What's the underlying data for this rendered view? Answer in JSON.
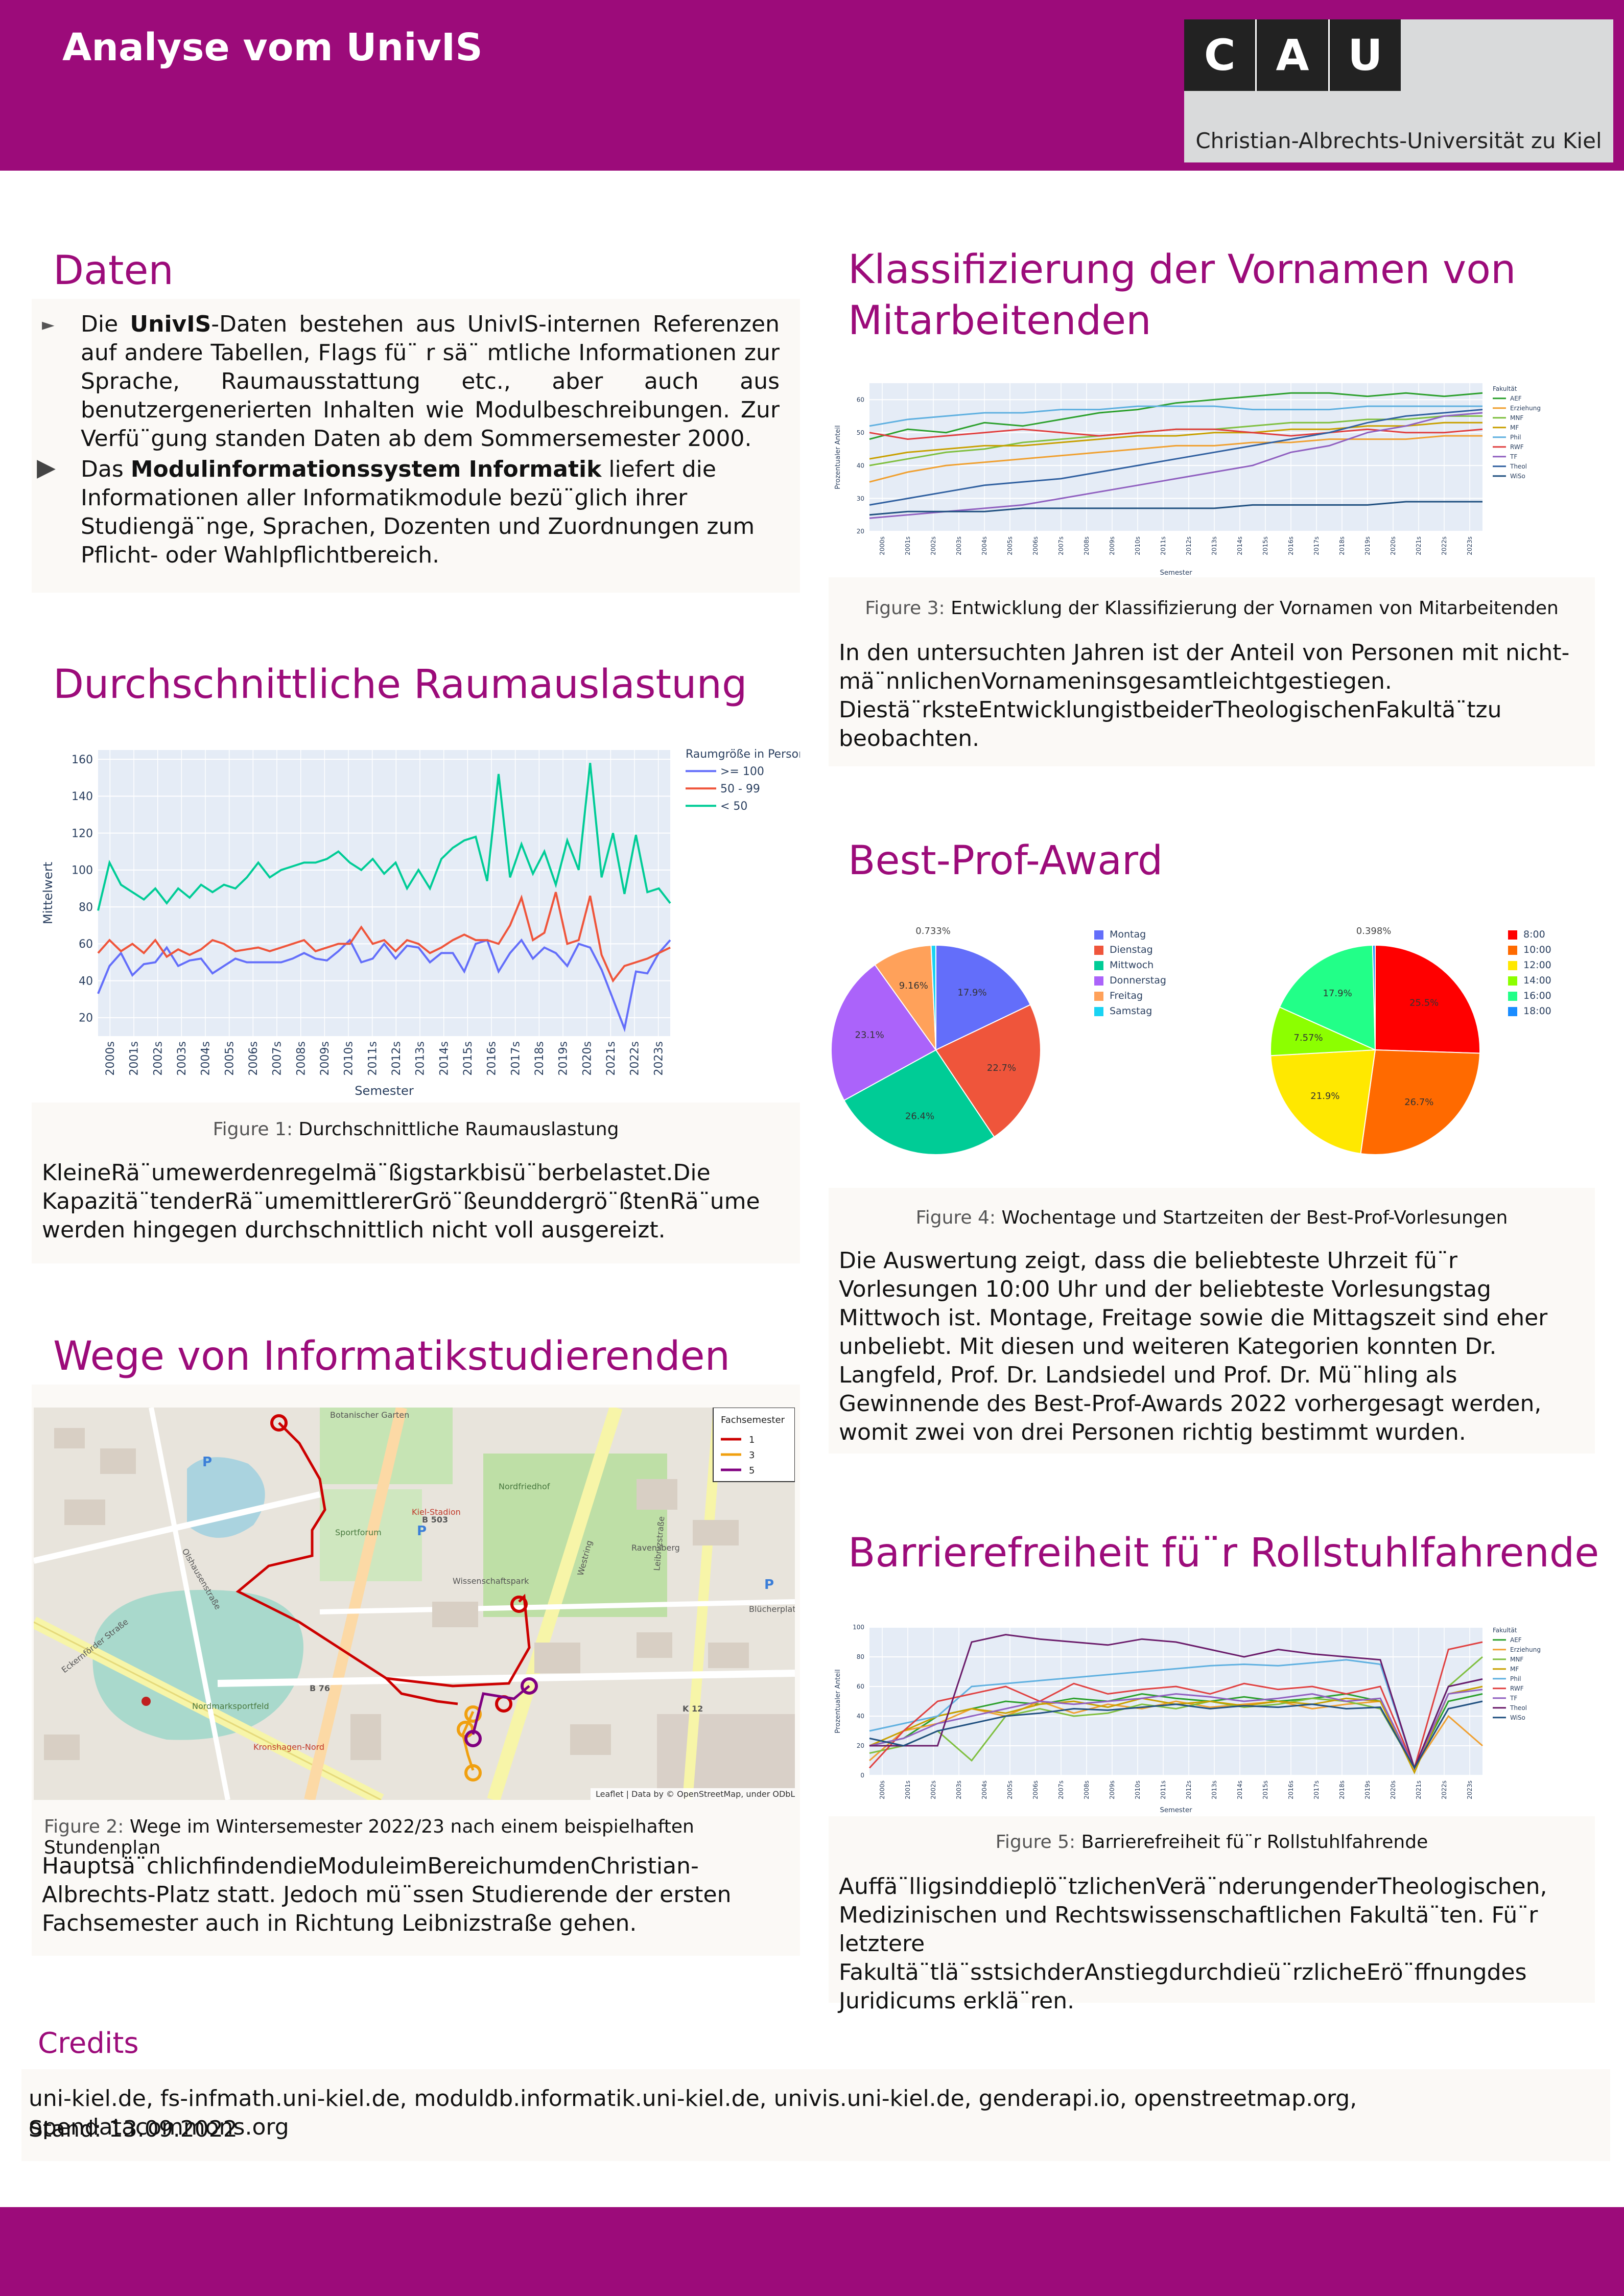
{
  "header": {
    "title": "Analyse vom UnivIS",
    "logo_letters": [
      "C",
      "A",
      "U"
    ],
    "logo_subtitle": "Christian-Albrechts-Universität zu Kiel",
    "brand_color": "#9c0b7a"
  },
  "daten": {
    "title": "Daten",
    "item1_pre": "Die ",
    "item1_bold": "UnivIS",
    "item1_post": "-Daten bestehen aus UnivIS-internen Referenzen auf andere Tabellen, Flags fü¨ r sä¨ mtliche Informationen zur Sprache, Raumausstattung etc., aber auch aus benutzergenerierten Inhalten wie Modulbeschreibungen. Zur Verfü¨gung standen Daten ab dem Sommersemester 2000.",
    "item2_pre": "Das ",
    "item2_bold": "Modulinformationssystem Informatik",
    "item2_post": " liefert die Informationen aller Informatikmodule bezü¨glich ihrer Studiengä¨nge, Sprachen, Dozenten und Zuordnungen zum Pflicht- oder Wahlpflichtbereich."
  },
  "raum": {
    "title": "Durchschnittliche Raumauslastung",
    "caption_label": "Figure 1:",
    "caption_text": "Durchschnittliche Raumauslastung",
    "body": "KleineRä¨umewerdenregelmä¨ßigstarkbisü¨berbelastet.Die Kapazitä¨tenderRä¨umemittlererGrö¨ßeunddergrö¨ßtenRä¨ume werden hingegen durchschnittlich nicht voll ausgereizt."
  },
  "wege": {
    "title": "Wege von Informatikstudierenden",
    "caption_label": "Figure 2:",
    "caption_text": "Wege im Wintersemester 2022/23 nach einem beispielhaften Stundenplan",
    "body": "Hauptsä¨chlichfindendieModuleimBereichumdenChristian-Albrechts-Platz statt. Jedoch mü¨ssen Studierende der ersten Fachsemester auch in Richtung Leibnizstraße gehen.",
    "legend_title": "Fachsemester",
    "legend": [
      {
        "label": "1",
        "color": "#cc0000"
      },
      {
        "label": "3",
        "color": "#f0a010"
      },
      {
        "label": "5",
        "color": "#800080"
      }
    ],
    "map_labels": [
      "Botanischer Garten",
      "Olshausenstraße",
      "Kiel-Stadion",
      "Sportforum",
      "Nordfriedhof",
      "Ravensberg",
      "Wissenschaftspark",
      "Nordmarksportfeld",
      "Eckernförder Straße",
      "Westring",
      "Blücherplatz",
      "Leibnizstraße",
      "Kronshagen-Nord",
      "B 503",
      "B 76",
      "K 12"
    ],
    "attribution": "Leaflet | Data by © OpenStreetMap, under ODbL."
  },
  "vornamen": {
    "title": "Klassifizierung der Vornamen von Mitarbeitenden",
    "caption_label": "Figure 3:",
    "caption_text": "Entwicklung der Klassifizierung der Vornamen von Mitarbeitenden",
    "body": "In den untersuchten Jahren ist der Anteil von Personen mit nicht-mä¨nnlichenVornameninsgesamtleichtgestiegen. Diestä¨rksteEntwicklungistbeiderTheologischenFakultä¨tzu beobachten."
  },
  "bestprof": {
    "title": "Best-Prof-Award",
    "caption_label": "Figure 4:",
    "caption_text": "Wochentage und Startzeiten der Best-Prof-Vorlesungen",
    "body": "Die Auswertung zeigt, dass die beliebteste Uhrzeit fü¨r Vorlesungen 10:00 Uhr und der beliebteste Vorlesungstag Mittwoch ist. Montage, Freitage sowie die Mittagszeit sind eher unbeliebt. Mit diesen und weiteren Kategorien konnten Dr. Langfeld, Prof. Dr. Landsiedel und Prof. Dr. Mü¨hling als Gewinnende des Best-Prof-Awards 2022 vorhergesagt werden, womit zwei von drei Personen richtig bestimmt wurden."
  },
  "barriere": {
    "title": "Barrierefreiheit fü¨r Rollstuhlfahrende",
    "caption_label": "Figure 5:",
    "caption_text": "Barrierefreiheit fü¨r Rollstuhlfahrende",
    "body": "Auffä¨lligsinddieplö¨tzlichenVerä¨nderungenderTheologischen, Medizinischen und Rechtswissenschaftlichen Fakultä¨ten. Fü¨r letztere Fakultä¨tlä¨sstsichderAnstiegdurchdieü¨rzlicheErö¨ffnungdes Juridicums erklä¨ren."
  },
  "credits": {
    "title": "Credits",
    "line1": "uni-kiel.de, fs-infmath.uni-kiel.de, moduldb.informatik.uni-kiel.de, univis.uni-kiel.de, genderapi.io, openstreetmap.org, opendatacommons.org",
    "line2": "Stand: 13.09.2022"
  },
  "chart_data": [
    {
      "id": "raumauslastung",
      "type": "line",
      "xlabel": "Semester",
      "ylabel": "Mittelwert",
      "ylim": [
        10,
        165
      ],
      "yticks": [
        20,
        40,
        60,
        80,
        100,
        120,
        140,
        160
      ],
      "legend_title": "Raumgröße in Personen",
      "legend_position": "top-right",
      "x_ticks": [
        "2000s",
        "2001s",
        "2002s",
        "2003s",
        "2004s",
        "2005s",
        "2006s",
        "2007s",
        "2008s",
        "2009s",
        "2010s",
        "2011s",
        "2012s",
        "2013s",
        "2014s",
        "2015s",
        "2016s",
        "2017s",
        "2018s",
        "2019s",
        "2020s",
        "2021s",
        "2022s",
        "2023s"
      ],
      "series": [
        {
          "name": ">= 100",
          "color": "#636efa",
          "values": [
            33,
            48,
            55,
            43,
            49,
            50,
            58,
            48,
            51,
            52,
            44,
            48,
            52,
            50,
            50,
            50,
            50,
            52,
            55,
            52,
            51,
            56,
            62,
            50,
            52,
            60,
            52,
            59,
            58,
            50,
            55,
            55,
            45,
            60,
            62,
            45,
            55,
            62,
            52,
            58,
            55,
            48,
            60,
            58,
            46,
            30,
            14,
            45,
            44,
            55,
            62
          ]
        },
        {
          "name": "50 - 99",
          "color": "#ef553b",
          "values": [
            55,
            62,
            56,
            60,
            55,
            62,
            53,
            57,
            54,
            57,
            62,
            60,
            56,
            57,
            58,
            56,
            58,
            60,
            62,
            56,
            58,
            60,
            60,
            69,
            60,
            62,
            56,
            62,
            60,
            55,
            58,
            62,
            65,
            62,
            62,
            60,
            70,
            85,
            62,
            66,
            88,
            60,
            62,
            86,
            54,
            40,
            48,
            50,
            52,
            55,
            58
          ]
        },
        {
          "name": "< 50",
          "color": "#00cc96",
          "values": [
            78,
            104,
            92,
            88,
            84,
            90,
            82,
            90,
            85,
            92,
            88,
            92,
            90,
            96,
            104,
            96,
            100,
            102,
            104,
            104,
            106,
            110,
            104,
            100,
            106,
            98,
            104,
            90,
            100,
            90,
            106,
            112,
            116,
            118,
            94,
            152,
            96,
            114,
            98,
            110,
            92,
            116,
            100,
            158,
            96,
            120,
            87,
            119,
            88,
            90,
            82
          ]
        }
      ]
    },
    {
      "id": "vornamen",
      "type": "line",
      "xlabel": "Semester",
      "ylabel": "Prozentualer Anteil",
      "ylim": [
        20,
        65
      ],
      "yticks": [
        20,
        30,
        40,
        50,
        60
      ],
      "legend_title": "Fakultät",
      "legend_position": "top-right",
      "x_ticks": [
        "2000s",
        "2001s",
        "2002s",
        "2003s",
        "2004s",
        "2005s",
        "2006s",
        "2007s",
        "2008s",
        "2009s",
        "2010s",
        "2011s",
        "2012s",
        "2013s",
        "2014s",
        "2015s",
        "2016s",
        "2017s",
        "2018s",
        "2019s",
        "2020s",
        "2021s",
        "2022s",
        "2023s"
      ],
      "series": [
        {
          "name": "AEF",
          "color": "#2ca02c",
          "values": [
            48,
            51,
            50,
            53,
            52,
            54,
            56,
            57,
            59,
            60,
            61,
            62,
            62,
            61,
            62,
            61,
            62
          ]
        },
        {
          "name": "Erziehung",
          "color": "#f0a030",
          "values": [
            35,
            38,
            40,
            41,
            42,
            43,
            44,
            45,
            46,
            46,
            47,
            47,
            48,
            48,
            48,
            49,
            49
          ]
        },
        {
          "name": "MNF",
          "color": "#7fbf3f",
          "values": [
            40,
            42,
            44,
            45,
            47,
            48,
            49,
            50,
            51,
            51,
            52,
            53,
            53,
            54,
            54,
            55,
            55
          ]
        },
        {
          "name": "MF",
          "color": "#c8a000",
          "values": [
            42,
            44,
            45,
            46,
            46,
            47,
            48,
            49,
            49,
            50,
            50,
            51,
            51,
            52,
            52,
            53,
            53
          ]
        },
        {
          "name": "Phil",
          "color": "#5fb0e0",
          "values": [
            52,
            54,
            55,
            56,
            56,
            57,
            57,
            58,
            58,
            58,
            57,
            57,
            57,
            58,
            58,
            58,
            58
          ]
        },
        {
          "name": "RWF",
          "color": "#e04040",
          "values": [
            50,
            48,
            49,
            50,
            51,
            50,
            49,
            50,
            51,
            51,
            50,
            49,
            50,
            51,
            50,
            50,
            51
          ]
        },
        {
          "name": "TF",
          "color": "#9060c0",
          "values": [
            24,
            25,
            26,
            27,
            28,
            30,
            32,
            34,
            36,
            38,
            40,
            44,
            46,
            50,
            52,
            55,
            56
          ]
        },
        {
          "name": "Theol",
          "color": "#3060a0",
          "values": [
            28,
            30,
            32,
            34,
            35,
            36,
            38,
            40,
            42,
            44,
            46,
            48,
            50,
            53,
            55,
            56,
            57
          ]
        },
        {
          "name": "WiSo",
          "color": "#205080",
          "values": [
            25,
            26,
            26,
            26,
            27,
            27,
            27,
            27,
            27,
            27,
            28,
            28,
            28,
            28,
            29,
            29,
            29
          ]
        }
      ]
    },
    {
      "id": "wochentage",
      "type": "pie",
      "slices": [
        {
          "label": "Montag",
          "value": 17.9,
          "color": "#636efa"
        },
        {
          "label": "Dienstag",
          "value": 22.7,
          "color": "#ef553b"
        },
        {
          "label": "Mittwoch",
          "value": 26.4,
          "color": "#00cc96"
        },
        {
          "label": "Donnerstag",
          "value": 23.1,
          "color": "#ab63fa"
        },
        {
          "label": "Freitag",
          "value": 9.16,
          "color": "#ffa15a"
        },
        {
          "label": "Samstag",
          "value": 0.733,
          "color": "#19d3f3"
        }
      ],
      "slice_labels": [
        "17.9%",
        "22.7%",
        "26.4%",
        "23.1%",
        "9.16%",
        "0.733%"
      ]
    },
    {
      "id": "startzeiten",
      "type": "pie",
      "slices": [
        {
          "label": "8:00",
          "value": 25.5,
          "color": "#ff0000"
        },
        {
          "label": "10:00",
          "value": 26.7,
          "color": "#ff6a00"
        },
        {
          "label": "12:00",
          "value": 21.9,
          "color": "#ffe800"
        },
        {
          "label": "14:00",
          "value": 7.57,
          "color": "#8cff00"
        },
        {
          "label": "16:00",
          "value": 17.9,
          "color": "#22ff88"
        },
        {
          "label": "18:00",
          "value": 0.398,
          "color": "#1a8cff"
        }
      ],
      "slice_labels": [
        "25.5%",
        "26.7%",
        "21.9%",
        "7.57%",
        "17.9%",
        "0.398%"
      ]
    },
    {
      "id": "barrierefreiheit",
      "type": "line",
      "xlabel": "Semester",
      "ylabel": "Prozentualer Anteil",
      "ylim": [
        0,
        100
      ],
      "yticks": [
        0,
        20,
        40,
        60,
        80,
        100
      ],
      "legend_title": "Fakultät",
      "legend_position": "top-right",
      "x_ticks": [
        "2000s",
        "2001s",
        "2002s",
        "2003s",
        "2004s",
        "2005s",
        "2006s",
        "2007s",
        "2008s",
        "2009s",
        "2010s",
        "2011s",
        "2012s",
        "2013s",
        "2014s",
        "2015s",
        "2016s",
        "2017s",
        "2018s",
        "2019s",
        "2020s",
        "2021s",
        "2022s",
        "2023s"
      ],
      "series": [
        {
          "name": "AEF",
          "color": "#2ca02c",
          "values": [
            20,
            25,
            40,
            45,
            50,
            48,
            52,
            50,
            55,
            52,
            50,
            53,
            50,
            52,
            55,
            50,
            5,
            50,
            55
          ]
        },
        {
          "name": "Erziehung",
          "color": "#f0a030",
          "values": [
            10,
            30,
            35,
            45,
            40,
            50,
            42,
            48,
            45,
            50,
            46,
            48,
            50,
            45,
            48,
            50,
            5,
            40,
            20
          ]
        },
        {
          "name": "MNF",
          "color": "#7fbf3f",
          "values": [
            15,
            20,
            30,
            10,
            40,
            45,
            40,
            42,
            48,
            45,
            50,
            46,
            48,
            52,
            50,
            45,
            5,
            60,
            80
          ]
        },
        {
          "name": "MF",
          "color": "#c8a000",
          "values": [
            20,
            30,
            40,
            45,
            42,
            48,
            50,
            46,
            52,
            48,
            50,
            47,
            50,
            48,
            52,
            50,
            2,
            55,
            60
          ]
        },
        {
          "name": "Phil",
          "color": "#5fb0e0",
          "values": [
            30,
            35,
            40,
            60,
            62,
            64,
            66,
            68,
            70,
            72,
            74,
            75,
            74,
            76,
            78,
            75,
            5,
            60,
            65
          ]
        },
        {
          "name": "RWF",
          "color": "#e04040",
          "values": [
            5,
            30,
            50,
            55,
            60,
            50,
            62,
            55,
            58,
            60,
            55,
            62,
            58,
            60,
            55,
            60,
            5,
            85,
            90
          ]
        },
        {
          "name": "TF",
          "color": "#9060c0",
          "values": [
            20,
            25,
            35,
            40,
            45,
            50,
            48,
            50,
            52,
            55,
            53,
            50,
            52,
            55,
            50,
            52,
            5,
            55,
            58
          ]
        },
        {
          "name": "Theol",
          "color": "#6a1b6a",
          "values": [
            20,
            20,
            20,
            90,
            95,
            92,
            90,
            88,
            92,
            90,
            85,
            80,
            85,
            82,
            80,
            78,
            5,
            60,
            65
          ]
        },
        {
          "name": "WiSo",
          "color": "#205080",
          "values": [
            25,
            20,
            30,
            35,
            40,
            42,
            45,
            44,
            46,
            48,
            45,
            47,
            46,
            48,
            45,
            46,
            5,
            45,
            50
          ]
        }
      ]
    }
  ]
}
